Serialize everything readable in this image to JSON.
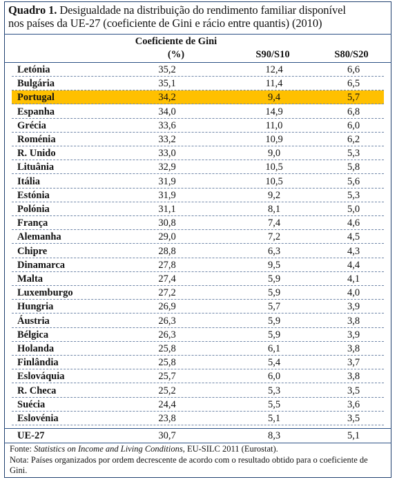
{
  "caption": {
    "label": "Quadro 1.",
    "text_line1": "Desigualdade na distribuição do rendimento familiar disponível",
    "text_line2": "nos países da UE-27 (coeficiente de Gini e rácio entre quantis) (2010)"
  },
  "columns": {
    "gini_line1": "Coeficiente de Gini",
    "gini_line2": "(%)",
    "s90": "S90/S10",
    "s80": "S80/S20"
  },
  "rows": [
    {
      "country": "Letónia",
      "gini": "35,2",
      "s90": "12,4",
      "s80": "6,6"
    },
    {
      "country": "Bulgária",
      "gini": "35,1",
      "s90": "11,4",
      "s80": "6,5"
    },
    {
      "country": "Portugal",
      "gini": "34,2",
      "s90": "9,4",
      "s80": "5,7"
    },
    {
      "country": "Espanha",
      "gini": "34,0",
      "s90": "14,9",
      "s80": "6,8"
    },
    {
      "country": "Grécia",
      "gini": "33,6",
      "s90": "11,0",
      "s80": "6,0"
    },
    {
      "country": "Roménia",
      "gini": "33,2",
      "s90": "10,9",
      "s80": "6,2"
    },
    {
      "country": "R. Unido",
      "gini": "33,0",
      "s90": "9,0",
      "s80": "5,3"
    },
    {
      "country": "Lituânia",
      "gini": "32,9",
      "s90": "10,5",
      "s80": "5,8"
    },
    {
      "country": "Itália",
      "gini": "31,9",
      "s90": "10,5",
      "s80": "5,6"
    },
    {
      "country": "Estónia",
      "gini": "31,9",
      "s90": "9,2",
      "s80": "5,3"
    },
    {
      "country": "Polónia",
      "gini": "31,1",
      "s90": "8,1",
      "s80": "5,0"
    },
    {
      "country": "França",
      "gini": "30,8",
      "s90": "7,4",
      "s80": "4,6"
    },
    {
      "country": "Alemanha",
      "gini": "29,0",
      "s90": "7,2",
      "s80": "4,5"
    },
    {
      "country": "Chipre",
      "gini": "28,8",
      "s90": "6,3",
      "s80": "4,3"
    },
    {
      "country": "Dinamarca",
      "gini": "27,8",
      "s90": "9,5",
      "s80": "4,4"
    },
    {
      "country": "Malta",
      "gini": "27,4",
      "s90": "5,9",
      "s80": "4,1"
    },
    {
      "country": "Luxemburgo",
      "gini": "27,2",
      "s90": "5,9",
      "s80": "4,0"
    },
    {
      "country": "Hungria",
      "gini": "26,9",
      "s90": "5,7",
      "s80": "3,9"
    },
    {
      "country": "Áustria",
      "gini": "26,3",
      "s90": "5,9",
      "s80": "3,8"
    },
    {
      "country": "Bélgica",
      "gini": "26,3",
      "s90": "5,9",
      "s80": "3,9"
    },
    {
      "country": "Holanda",
      "gini": "25,8",
      "s90": "6,1",
      "s80": "3,8"
    },
    {
      "country": "Finlândia",
      "gini": "25,8",
      "s90": "5,4",
      "s80": "3,7"
    },
    {
      "country": "Eslováquia",
      "gini": "25,7",
      "s90": "6,0",
      "s80": "3,8"
    },
    {
      "country": "R. Checa",
      "gini": "25,2",
      "s90": "5,3",
      "s80": "3,5"
    },
    {
      "country": "Suécia",
      "gini": "24,4",
      "s90": "5,5",
      "s80": "3,6"
    },
    {
      "country": "Eslovénia",
      "gini": "23,8",
      "s90": "5,1",
      "s80": "3,5"
    }
  ],
  "highlight_country": "Portugal",
  "highlight_color": "#ffc000",
  "total": {
    "country": "UE-27",
    "gini": "30,7",
    "s90": "8,3",
    "s80": "5,1"
  },
  "notes": {
    "source_prefix": "Fonte: ",
    "source_italic": "Statistics on Income and Living Conditions",
    "source_suffix": ", EU-SILC 2011 (Eurostat).",
    "note": "Nota: Países organizados por ordem decrescente de acordo com o resultado obtido para o coeficiente de Gini."
  }
}
